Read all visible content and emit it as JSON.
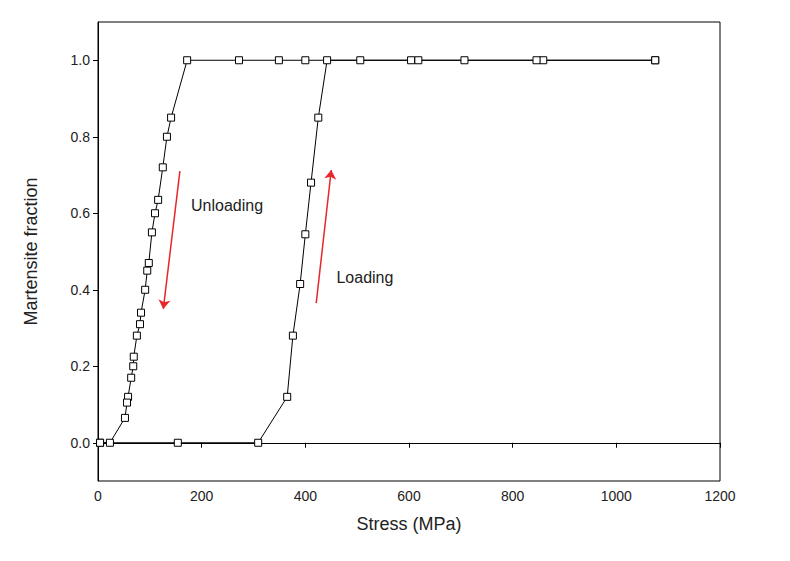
{
  "chart_data": {
    "type": "line",
    "xlabel": "Stress (MPa)",
    "ylabel": "Martensite fraction",
    "xlim": [
      0,
      1200
    ],
    "xticks": [
      0,
      200,
      400,
      600,
      800,
      1000,
      1200
    ],
    "ylim": [
      -0.1,
      1.1
    ],
    "yticks": [
      {
        "value": 0,
        "label": "0.0"
      },
      0.2,
      0.4,
      0.6,
      0.8,
      {
        "value": 1,
        "label": "1.0"
      }
    ],
    "grid": false,
    "series": [
      {
        "color": "#000000",
        "marker": "square",
        "line_style": "solid",
        "x": [
          4,
          154,
          309,
          365,
          376,
          390,
          400,
          411,
          425,
          442,
          506,
          604,
          707,
          859,
          1075
        ],
        "values": [
          0,
          0,
          0,
          0.12,
          0.28,
          0.415,
          0.545,
          0.68,
          0.85,
          1,
          1,
          1,
          1,
          1,
          1
        ]
      },
      {
        "color": "#000000",
        "marker": "square",
        "line_style": "solid",
        "x": [
          1075,
          846,
          618,
          400,
          349,
          272,
          172,
          141,
          133,
          125,
          116,
          110,
          104,
          98,
          95,
          91,
          83,
          81,
          75,
          69,
          68,
          64,
          58,
          56,
          52,
          23,
          4
        ],
        "values": [
          1,
          1,
          1,
          1,
          1,
          1,
          1,
          0.85,
          0.8,
          0.72,
          0.635,
          0.6,
          0.55,
          0.47,
          0.45,
          0.4,
          0.34,
          0.31,
          0.28,
          0.225,
          0.2,
          0.17,
          0.12,
          0.105,
          0.065,
          0,
          0
        ]
      }
    ],
    "annotations": [
      {
        "text": "Unloading",
        "x": 249,
        "y": 0.62,
        "arrow": [
          [
            158,
            0.71
          ],
          [
            126,
            0.35
          ]
        ]
      },
      {
        "text": "Loading",
        "x": 515,
        "y": 0.433,
        "arrow": [
          [
            421,
            0.365
          ],
          [
            450,
            0.713
          ]
        ]
      }
    ]
  }
}
